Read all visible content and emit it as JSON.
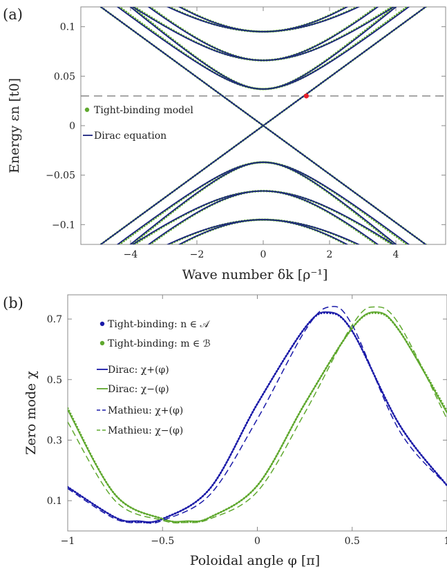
{
  "chart_data": [
    {
      "panel_label": "(a)",
      "type": "line",
      "xlabel": "Wave number δk [ρ⁻¹]",
      "ylabel": "Energy εn [t0]",
      "xlim": [
        -5.5,
        5.5
      ],
      "ylim": [
        -0.12,
        0.12
      ],
      "xticks": [
        -4,
        -2,
        0,
        2,
        4
      ],
      "xtick_labels": [
        "−4",
        "−2",
        "0",
        "2",
        "4"
      ],
      "yticks": [
        0.1,
        0.05,
        0,
        -0.05,
        -0.1
      ],
      "ytick_labels": [
        "0.1",
        "0.05",
        "0",
        "−0.05",
        "−0.1"
      ],
      "grid": false,
      "legend_position": "middle-left",
      "legend": [
        {
          "label": "Tight-binding model",
          "color": "#5fa82e",
          "marker": "dot"
        },
        {
          "label": "Dirac equation",
          "color": "#1a237e",
          "marker": "line"
        }
      ],
      "series": [
        {
          "name": "Tight-binding model",
          "color": "#5fa82e",
          "style": "dotted"
        },
        {
          "name": "Dirac equation",
          "color": "#1a237e",
          "style": "solid"
        }
      ],
      "bands": [
        {
          "kind": "gapless",
          "v": 0.0245
        },
        {
          "kind": "gapped",
          "gap": 0.037,
          "v": 0.026
        },
        {
          "kind": "gapped",
          "gap": 0.037,
          "v": 0.0285
        },
        {
          "kind": "gapped",
          "gap": 0.066,
          "v": 0.0255
        },
        {
          "kind": "gapped",
          "gap": 0.066,
          "v": 0.029
        },
        {
          "kind": "gapped",
          "gap": 0.095,
          "v": 0.0255
        },
        {
          "kind": "gapped",
          "gap": 0.095,
          "v": 0.029
        }
      ],
      "fermi_level": 0.03,
      "marked_point": {
        "x": 1.3,
        "y": 0.03,
        "color": "#e8202a"
      }
    },
    {
      "panel_label": "(b)",
      "type": "line",
      "xlabel": "Poloidal angle φ [π]",
      "ylabel": "Zero mode χ",
      "xlim": [
        -1,
        1
      ],
      "ylim": [
        0,
        0.78
      ],
      "xticks": [
        -1,
        -0.5,
        0,
        0.5,
        1
      ],
      "xtick_labels": [
        "−1",
        "−0.5",
        "0",
        "0.5",
        "1"
      ],
      "yticks": [
        0.1,
        0.3,
        0.5,
        0.7
      ],
      "ytick_labels": [
        "0.1",
        "0.3",
        "0.5",
        "0.7"
      ],
      "grid": false,
      "legend_position": "top-left",
      "legend": [
        {
          "label": "Tight-binding: n ∈ 𝒜",
          "color": "#1a1aa8",
          "marker": "dot"
        },
        {
          "label": "Tight-binding: m ∈ ℬ",
          "color": "#5fa82e",
          "marker": "dot"
        },
        {
          "label": "Dirac: χ+(φ)",
          "color": "#1a1aa8",
          "marker": "line"
        },
        {
          "label": "Dirac: χ−(φ)",
          "color": "#5fa82e",
          "marker": "line"
        },
        {
          "label": "Mathieu: χ+(φ)",
          "color": "#1a1aa8",
          "marker": "dashed"
        },
        {
          "label": "Mathieu: χ−(φ)",
          "color": "#5fa82e",
          "marker": "dashed"
        }
      ],
      "series": [
        {
          "name": "Tight-binding: n ∈ 𝒜",
          "color": "#1a1aa8",
          "style": "dotted",
          "x": [
            -1,
            -0.75,
            -0.63,
            -0.5,
            -0.25,
            0,
            0.25,
            0.37,
            0.5,
            0.75,
            1
          ],
          "y": [
            0.145,
            0.045,
            0.03,
            0.04,
            0.14,
            0.42,
            0.67,
            0.72,
            0.66,
            0.35,
            0.15
          ]
        },
        {
          "name": "Tight-binding: m ∈ ℬ",
          "color": "#5fa82e",
          "style": "dotted",
          "x": [
            -1,
            -0.75,
            -0.5,
            -0.37,
            -0.25,
            0,
            0.25,
            0.5,
            0.63,
            0.75,
            1
          ],
          "y": [
            0.405,
            0.12,
            0.04,
            0.03,
            0.045,
            0.15,
            0.42,
            0.67,
            0.72,
            0.66,
            0.395
          ]
        },
        {
          "name": "Dirac: χ+(φ)",
          "color": "#1a1aa8",
          "style": "solid",
          "x": [
            -1,
            -0.75,
            -0.63,
            -0.5,
            -0.25,
            0,
            0.25,
            0.37,
            0.5,
            0.75,
            1
          ],
          "y": [
            0.145,
            0.045,
            0.033,
            0.04,
            0.14,
            0.42,
            0.67,
            0.723,
            0.66,
            0.35,
            0.15
          ]
        },
        {
          "name": "Dirac: χ−(φ)",
          "color": "#5fa82e",
          "style": "solid",
          "x": [
            -1,
            -0.75,
            -0.5,
            -0.37,
            -0.25,
            0,
            0.25,
            0.5,
            0.63,
            0.75,
            1
          ],
          "y": [
            0.4,
            0.12,
            0.04,
            0.033,
            0.045,
            0.15,
            0.42,
            0.67,
            0.723,
            0.66,
            0.39
          ]
        },
        {
          "name": "Mathieu: χ+(φ)",
          "color": "#1a1aa8",
          "style": "dashed",
          "x": [
            -1,
            -0.75,
            -0.6,
            -0.5,
            -0.25,
            0,
            0.25,
            0.38,
            0.5,
            0.75,
            1
          ],
          "y": [
            0.14,
            0.04,
            0.028,
            0.035,
            0.12,
            0.37,
            0.66,
            0.74,
            0.68,
            0.33,
            0.15
          ]
        },
        {
          "name": "Mathieu: χ−(φ)",
          "color": "#5fa82e",
          "style": "dashed",
          "x": [
            -1,
            -0.75,
            -0.5,
            -0.38,
            -0.25,
            0,
            0.25,
            0.5,
            0.62,
            0.75,
            1
          ],
          "y": [
            0.36,
            0.1,
            0.035,
            0.028,
            0.04,
            0.13,
            0.39,
            0.68,
            0.74,
            0.68,
            0.37
          ]
        }
      ]
    }
  ]
}
